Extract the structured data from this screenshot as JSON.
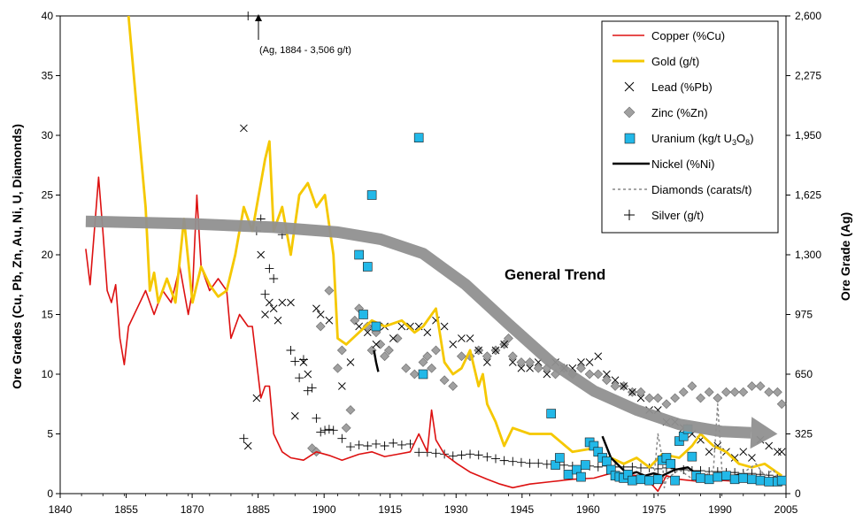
{
  "chart_data": {
    "type": "line",
    "title": "",
    "xlabel": "",
    "ylabel_left": "Ore Grades (Cu, Pb, Zn, Au, Ni, U, Diamonds)",
    "ylabel_right": "Ore Grade (Ag)",
    "xlim": [
      1840,
      2010
    ],
    "ylim_left": [
      0,
      40
    ],
    "ylim_right": [
      0,
      2600
    ],
    "x_ticks": [
      "1840",
      "1855",
      "1870",
      "1885",
      "1900",
      "1915",
      "1930",
      "1945",
      "1960",
      "1975",
      "1990",
      "2005"
    ],
    "y_ticks_left": [
      "0",
      "5",
      "10",
      "15",
      "20",
      "25",
      "30",
      "35",
      "40"
    ],
    "y_ticks_right": [
      "0",
      "325",
      "650",
      "975",
      "1,300",
      "1,625",
      "1,950",
      "2,275",
      "2,600"
    ],
    "annotation": "(Ag, 1884 - 3,506 g/t)",
    "trend_label": "General Trend",
    "legend": {
      "copper": "Copper (%Cu)",
      "gold": "Gold (g/t)",
      "lead": "Lead (%Pb)",
      "zinc": "Zinc (%Zn)",
      "uranium_prefix": "Uranium  (kg/t U",
      "uranium_sub": "3",
      "uranium_mid": "O",
      "uranium_sub2": "8",
      "uranium_suffix": ")",
      "nickel": "Nickel (%Ni)",
      "diamonds": "Diamonds (carats/t)",
      "silver": "Silver (g/t)"
    },
    "colors": {
      "copper": "#dd1111",
      "gold": "#f5c800",
      "lead": "#000000",
      "zinc": "#a0a0a0",
      "uranium": "#22b8e8",
      "nickel": "#000000",
      "diamonds": "#888888",
      "silver": "#000000",
      "trend": "#909090"
    },
    "series": [
      {
        "name": "Copper (%Cu)",
        "kind": "line",
        "axis": "left",
        "x": [
          1846,
          1847,
          1848,
          1849,
          1850,
          1851,
          1852,
          1853,
          1854,
          1855,
          1856,
          1858,
          1860,
          1862,
          1864,
          1866,
          1868,
          1870,
          1871,
          1872,
          1873,
          1875,
          1877,
          1879,
          1880,
          1882,
          1884,
          1885,
          1886,
          1887,
          1888,
          1889,
          1890,
          1892,
          1894,
          1897,
          1900,
          1903,
          1906,
          1910,
          1913,
          1916,
          1919,
          1922,
          1924,
          1926,
          1927,
          1928,
          1930,
          1933,
          1936,
          1940,
          1943,
          1946,
          1950,
          1955,
          1960,
          1965,
          1970,
          1975,
          1978,
          1980,
          1982,
          1985,
          1990,
          1995,
          2000,
          2005,
          2009
        ],
        "y": [
          20.5,
          17.5,
          22,
          26.5,
          22,
          17,
          16,
          17.5,
          13,
          10.8,
          14,
          15.5,
          17,
          15,
          17,
          16,
          19,
          15,
          17,
          25,
          19,
          17,
          18,
          17,
          13,
          15,
          14,
          14,
          11,
          8,
          9,
          9,
          5,
          3.5,
          3,
          2.8,
          3.5,
          3.2,
          2.8,
          3.3,
          3.5,
          3.1,
          3.3,
          3.5,
          5,
          3.5,
          7,
          4.5,
          3.3,
          2.5,
          1.8,
          1.2,
          0.8,
          0.5,
          0.8,
          1,
          1.2,
          1.3,
          1.8,
          1.5,
          1,
          0.2,
          1.5,
          1.2,
          1,
          1.1,
          1,
          0.9,
          0.9
        ]
      },
      {
        "name": "Gold (g/t)",
        "kind": "line",
        "axis": "left",
        "x": [
          1856,
          1858,
          1860,
          1861,
          1862,
          1863,
          1865,
          1867,
          1869,
          1871,
          1873,
          1875,
          1877,
          1879,
          1881,
          1883,
          1885,
          1887,
          1888,
          1889,
          1890,
          1892,
          1894,
          1896,
          1898,
          1900,
          1902,
          1904,
          1905,
          1907,
          1910,
          1913,
          1916,
          1920,
          1923,
          1925,
          1928,
          1930,
          1932,
          1934,
          1936,
          1938,
          1939,
          1940,
          1942,
          1944,
          1946,
          1950,
          1955,
          1960,
          1965,
          1967,
          1969,
          1972,
          1975,
          1978,
          1981,
          1985,
          1988,
          1990,
          1993,
          1996,
          1999,
          2002,
          2005,
          2009
        ],
        "y": [
          40,
          32,
          24,
          17,
          18.5,
          16,
          18,
          16,
          23,
          16,
          19,
          17.5,
          16.5,
          17,
          20,
          24,
          22,
          26,
          28,
          29.5,
          22,
          24,
          20,
          25,
          26,
          24,
          25,
          20,
          13,
          12.5,
          13.5,
          14.5,
          14,
          14.5,
          13.5,
          14,
          15.5,
          11,
          10,
          10.5,
          12,
          9,
          10,
          7.5,
          6,
          4,
          5.5,
          5,
          5,
          3.5,
          3.8,
          3,
          3,
          2.5,
          3,
          2.2,
          3.3,
          3,
          4,
          5,
          4,
          3.5,
          2.5,
          2.2,
          2.5,
          1.5
        ]
      },
      {
        "name": "Lead (%Pb)",
        "kind": "x_marker",
        "axis": "left",
        "x": [
          1883,
          1884,
          1886,
          1887,
          1888,
          1889,
          1890,
          1891,
          1892,
          1894,
          1895,
          1897,
          1898,
          1900,
          1901,
          1903,
          1906,
          1908,
          1910,
          1912,
          1914,
          1916,
          1918,
          1920,
          1922,
          1924,
          1926,
          1928,
          1930,
          1932,
          1934,
          1936,
          1938,
          1940,
          1942,
          1944,
          1946,
          1948,
          1950,
          1952,
          1954,
          1956,
          1958,
          1960,
          1962,
          1964,
          1966,
          1968,
          1970,
          1972,
          1974,
          1976,
          1978,
          1980,
          1982,
          1984,
          1986,
          1988,
          1990,
          1992,
          1994,
          1996,
          1998,
          2000,
          2002,
          2004,
          2006,
          2008,
          2009
        ],
        "y": [
          30.6,
          4,
          8,
          20,
          15,
          16,
          15.5,
          14.5,
          16,
          16,
          6.5,
          11,
          10,
          15.5,
          15,
          14.5,
          9,
          11,
          14,
          13.5,
          12.5,
          14,
          13,
          14,
          14,
          14,
          13.5,
          14.5,
          14,
          12.5,
          13,
          13,
          12,
          11,
          12,
          12.5,
          11,
          10.5,
          10.5,
          11,
          10,
          11,
          10.5,
          10.5,
          11,
          11,
          11.5,
          10,
          9.5,
          9,
          8.5,
          8,
          7,
          7,
          6,
          6,
          5.5,
          5,
          4.5,
          3.5,
          4,
          3.5,
          3,
          3.5,
          3,
          4.5,
          4,
          3.5,
          3.5
        ]
      },
      {
        "name": "Zinc (%Zn)",
        "kind": "diamond_marker",
        "axis": "left",
        "x": [
          1899,
          1900,
          1901,
          1903,
          1905,
          1906,
          1907,
          1908,
          1909,
          1910,
          1911,
          1912,
          1913,
          1914,
          1915,
          1916,
          1917,
          1919,
          1921,
          1923,
          1925,
          1926,
          1927,
          1928,
          1930,
          1932,
          1934,
          1936,
          1938,
          1940,
          1942,
          1944,
          1945,
          1946,
          1948,
          1950,
          1952,
          1954,
          1956,
          1958,
          1960,
          1962,
          1964,
          1966,
          1968,
          1970,
          1972,
          1974,
          1976,
          1978,
          1980,
          1982,
          1984,
          1986,
          1988,
          1990,
          1992,
          1994,
          1996,
          1998,
          2000,
          2002,
          2004,
          2006,
          2008,
          2009
        ],
        "y": [
          3.8,
          3.5,
          14,
          17,
          10.5,
          12,
          5.5,
          7,
          14.5,
          15.5,
          15,
          14,
          12,
          13.5,
          12.5,
          11.5,
          12,
          13,
          10.5,
          10,
          11,
          11.5,
          10.5,
          12,
          9.5,
          9,
          11.5,
          11.5,
          12,
          11.5,
          12,
          12.5,
          13,
          11.5,
          11,
          11,
          10.5,
          10.5,
          10,
          10.5,
          10,
          10.5,
          10,
          10,
          9.5,
          9,
          9,
          8.5,
          8.5,
          8,
          8,
          7.5,
          8,
          8.5,
          9,
          8,
          8.5,
          8,
          8.5,
          8.5,
          8.5,
          9,
          9,
          8.5,
          8.5,
          7.5
        ]
      },
      {
        "name": "Uranium (kg/t U3O8)",
        "kind": "square_marker",
        "axis": "left",
        "x": [
          1910,
          1911,
          1912,
          1913,
          1914,
          1924,
          1925,
          1955,
          1956,
          1957,
          1959,
          1961,
          1962,
          1963,
          1964,
          1965,
          1966,
          1967,
          1968,
          1969,
          1970,
          1971,
          1972,
          1973,
          1974,
          1976,
          1978,
          1980,
          1981,
          1982,
          1983,
          1984,
          1985,
          1986,
          1987,
          1988,
          1989,
          1990,
          1992,
          1994,
          1996,
          1998,
          2000,
          2002,
          2004,
          2006,
          2008,
          2009
        ],
        "y": [
          20,
          15,
          19,
          25,
          14,
          29.8,
          10,
          6.7,
          2.4,
          3,
          1.6,
          2,
          1.4,
          2.4,
          4.3,
          4,
          3.5,
          3,
          2.7,
          2,
          1.5,
          1.4,
          1.3,
          1.6,
          1.1,
          1.2,
          1.1,
          1.2,
          2.8,
          3,
          2.5,
          1.1,
          4.4,
          4.8,
          5.4,
          3.1,
          1.5,
          1.3,
          1.2,
          1.4,
          1.5,
          1.2,
          1.3,
          1.2,
          1.1,
          1,
          1,
          1.1
        ]
      },
      {
        "name": "Nickel (%Ni)",
        "kind": "line",
        "axis": "left",
        "x": [
          1913.5,
          1914,
          1914.5,
          1967,
          1969,
          1971,
          1973,
          1975,
          1977,
          1979,
          1981,
          1984,
          1987,
          1990,
          1993,
          1996,
          1999,
          2002,
          2005,
          2009
        ],
        "y": [
          12,
          11,
          10.2,
          4.8,
          3,
          2.3,
          1.6,
          1.8,
          1.5,
          1.7,
          1.5,
          2,
          2.2,
          1.4,
          1.2,
          1.3,
          1.6,
          1.3,
          1.2,
          1.1
        ]
      },
      {
        "name": "Diamonds (carats/t)",
        "kind": "dashed_line",
        "axis": "left",
        "x": [
          1979,
          1980,
          1981,
          1981.5,
          1982,
          1983,
          1985,
          1987,
          1989,
          1991,
          1993,
          1994,
          1995,
          1997,
          1999,
          2001,
          2003,
          2005,
          2007,
          2009
        ],
        "y": [
          1,
          5,
          3,
          0.5,
          1.2,
          1.5,
          2,
          1.5,
          1,
          1.5,
          2,
          7.5,
          2,
          1,
          1.5,
          2,
          2.5,
          1.5,
          2,
          0.8
        ]
      },
      {
        "name": "Silver (g/t)",
        "kind": "plus_marker",
        "axis": "right",
        "x": [
          1883,
          1884,
          1886,
          1887,
          1888,
          1889,
          1890,
          1892,
          1894,
          1895,
          1896,
          1897,
          1898,
          1899,
          1900,
          1901,
          1902,
          1903,
          1904,
          1906,
          1908,
          1910,
          1912,
          1914,
          1916,
          1918,
          1920,
          1922,
          1924,
          1926,
          1928,
          1930,
          1932,
          1934,
          1936,
          1938,
          1940,
          1942,
          1944,
          1946,
          1948,
          1950,
          1952,
          1954,
          1956,
          1958,
          1960,
          1962,
          1964,
          1966,
          1968,
          1970,
          1972,
          1974,
          1976,
          1978,
          1980,
          1982,
          1984,
          1986,
          1988,
          1990,
          1992,
          1994,
          1996,
          1998,
          2000,
          2002,
          2004,
          2006,
          2008
        ],
        "y": [
          300,
          2600,
          1430,
          1495,
          1085,
          1225,
          1170,
          1410,
          780,
          720,
          630,
          730,
          560,
          575,
          410,
          335,
          345,
          350,
          345,
          300,
          255,
          265,
          260,
          270,
          260,
          275,
          265,
          270,
          225,
          225,
          220,
          215,
          205,
          210,
          215,
          210,
          200,
          190,
          180,
          175,
          170,
          165,
          165,
          160,
          160,
          155,
          150,
          150,
          150,
          145,
          150,
          145,
          145,
          145,
          140,
          140,
          135,
          140,
          135,
          130,
          125,
          125,
          120,
          120,
          115,
          115,
          110,
          110,
          105,
          100,
          95
        ]
      }
    ],
    "trend_arrow": {
      "x": [
        1846,
        1870,
        1890,
        1905,
        1915,
        1925,
        1935,
        1945,
        1955,
        1965,
        1975,
        1985,
        1995,
        2008
      ],
      "y": [
        22.8,
        22.6,
        22.3,
        21.9,
        21.3,
        20.1,
        17.5,
        14.2,
        11,
        8.6,
        7,
        5.8,
        5.2,
        5
      ]
    }
  }
}
